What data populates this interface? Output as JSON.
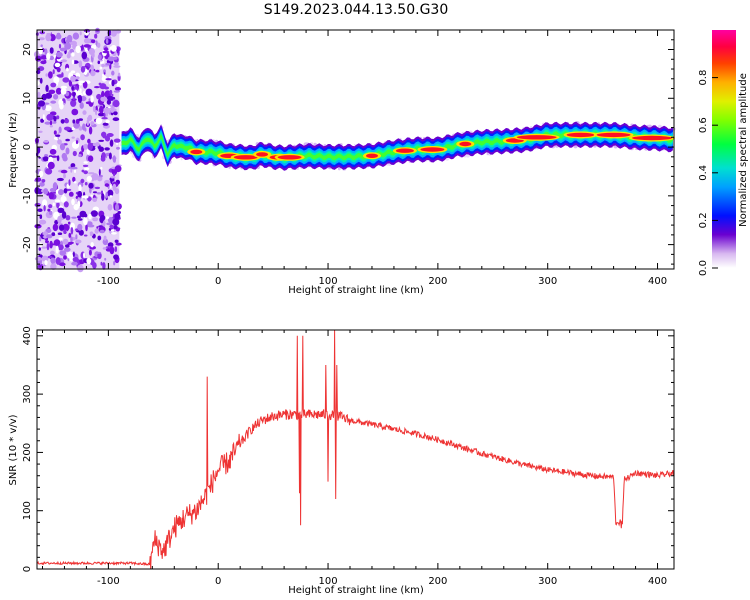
{
  "figure": {
    "title": "S149.2023.044.13.50.G30"
  },
  "chart_data": [
    {
      "type": "heatmap",
      "xlabel": "Height of straight line (km)",
      "ylabel": "Frequency (Hz)",
      "xlim": [
        -165,
        415
      ],
      "ylim": [
        -25,
        24
      ],
      "xticks": [
        -100,
        0,
        100,
        200,
        300,
        400
      ],
      "yticks": [
        -20,
        -10,
        0,
        10,
        20
      ],
      "colorbar": {
        "label": "Normalized spectral amplitude",
        "range": [
          0.0,
          1.0
        ],
        "ticks": [
          "0.0",
          "0.2",
          "0.4",
          "0.6",
          "0.8"
        ],
        "tick_values": [
          0.0,
          0.2,
          0.4,
          0.6,
          0.8
        ]
      },
      "noise_region_x": [
        -165,
        -90
      ],
      "ridge": {
        "x": [
          -88,
          -80,
          -72,
          -65,
          -58,
          -52,
          -46,
          -40,
          -34,
          -28,
          -20,
          -10,
          0,
          10,
          20,
          30,
          40,
          50,
          60,
          70,
          80,
          100,
          120,
          140,
          160,
          180,
          200,
          220,
          240,
          260,
          280,
          290,
          300,
          320,
          340,
          360,
          380,
          400,
          415
        ],
        "y": [
          0.5,
          1.5,
          -0.5,
          2.0,
          0.2,
          2.0,
          -1.5,
          0.5,
          0.0,
          0.0,
          -1.0,
          -1.0,
          -1.2,
          -1.8,
          -2.0,
          -2.2,
          -1.5,
          -2.0,
          -2.2,
          -2.0,
          -1.8,
          -2.0,
          -2.0,
          -1.8,
          -1.0,
          -0.5,
          -0.5,
          0.5,
          1.0,
          1.2,
          1.5,
          2.0,
          2.5,
          2.5,
          2.5,
          2.5,
          2.0,
          1.8,
          1.5
        ],
        "peaks_x": [
          -20,
          10,
          25,
          40,
          55,
          65,
          140,
          170,
          195,
          225,
          270,
          290,
          330,
          360,
          395
        ]
      }
    },
    {
      "type": "line",
      "xlabel": "Height of straight line (km)",
      "ylabel": "SNR (10 * v/v)",
      "xlim": [
        -165,
        415
      ],
      "ylim": [
        0,
        410
      ],
      "xticks": [
        -100,
        0,
        100,
        200,
        300,
        400
      ],
      "yticks": [
        0,
        100,
        200,
        300,
        400
      ],
      "color": "#ee3333",
      "envelope": {
        "x": [
          -165,
          -120,
          -80,
          -62,
          -58,
          -50,
          -40,
          -30,
          -20,
          -10,
          0,
          10,
          20,
          30,
          40,
          50,
          60,
          70,
          80,
          90,
          100,
          110,
          120,
          140,
          160,
          180,
          200,
          220,
          240,
          260,
          280,
          300,
          320,
          340,
          355,
          360,
          362,
          368,
          370,
          372,
          380,
          400,
          415
        ],
        "y": [
          10,
          10,
          10,
          8,
          50,
          30,
          70,
          90,
          100,
          130,
          170,
          185,
          215,
          240,
          255,
          262,
          265,
          265,
          265,
          265,
          265,
          262,
          255,
          248,
          240,
          232,
          222,
          210,
          198,
          188,
          178,
          170,
          165,
          160,
          158,
          158,
          80,
          80,
          160,
          155,
          165,
          160,
          165
        ]
      },
      "spikes": [
        {
          "x": -10,
          "y": 330
        },
        {
          "x": 72,
          "y": 400
        },
        {
          "x": 74,
          "y": 130
        },
        {
          "x": 75,
          "y": 75
        },
        {
          "x": 77,
          "y": 400
        },
        {
          "x": 98,
          "y": 350
        },
        {
          "x": 100,
          "y": 150
        },
        {
          "x": 106,
          "y": 410
        },
        {
          "x": 107,
          "y": 120
        },
        {
          "x": 108,
          "y": 350
        },
        {
          "x": 367,
          "y": 70
        }
      ]
    }
  ]
}
